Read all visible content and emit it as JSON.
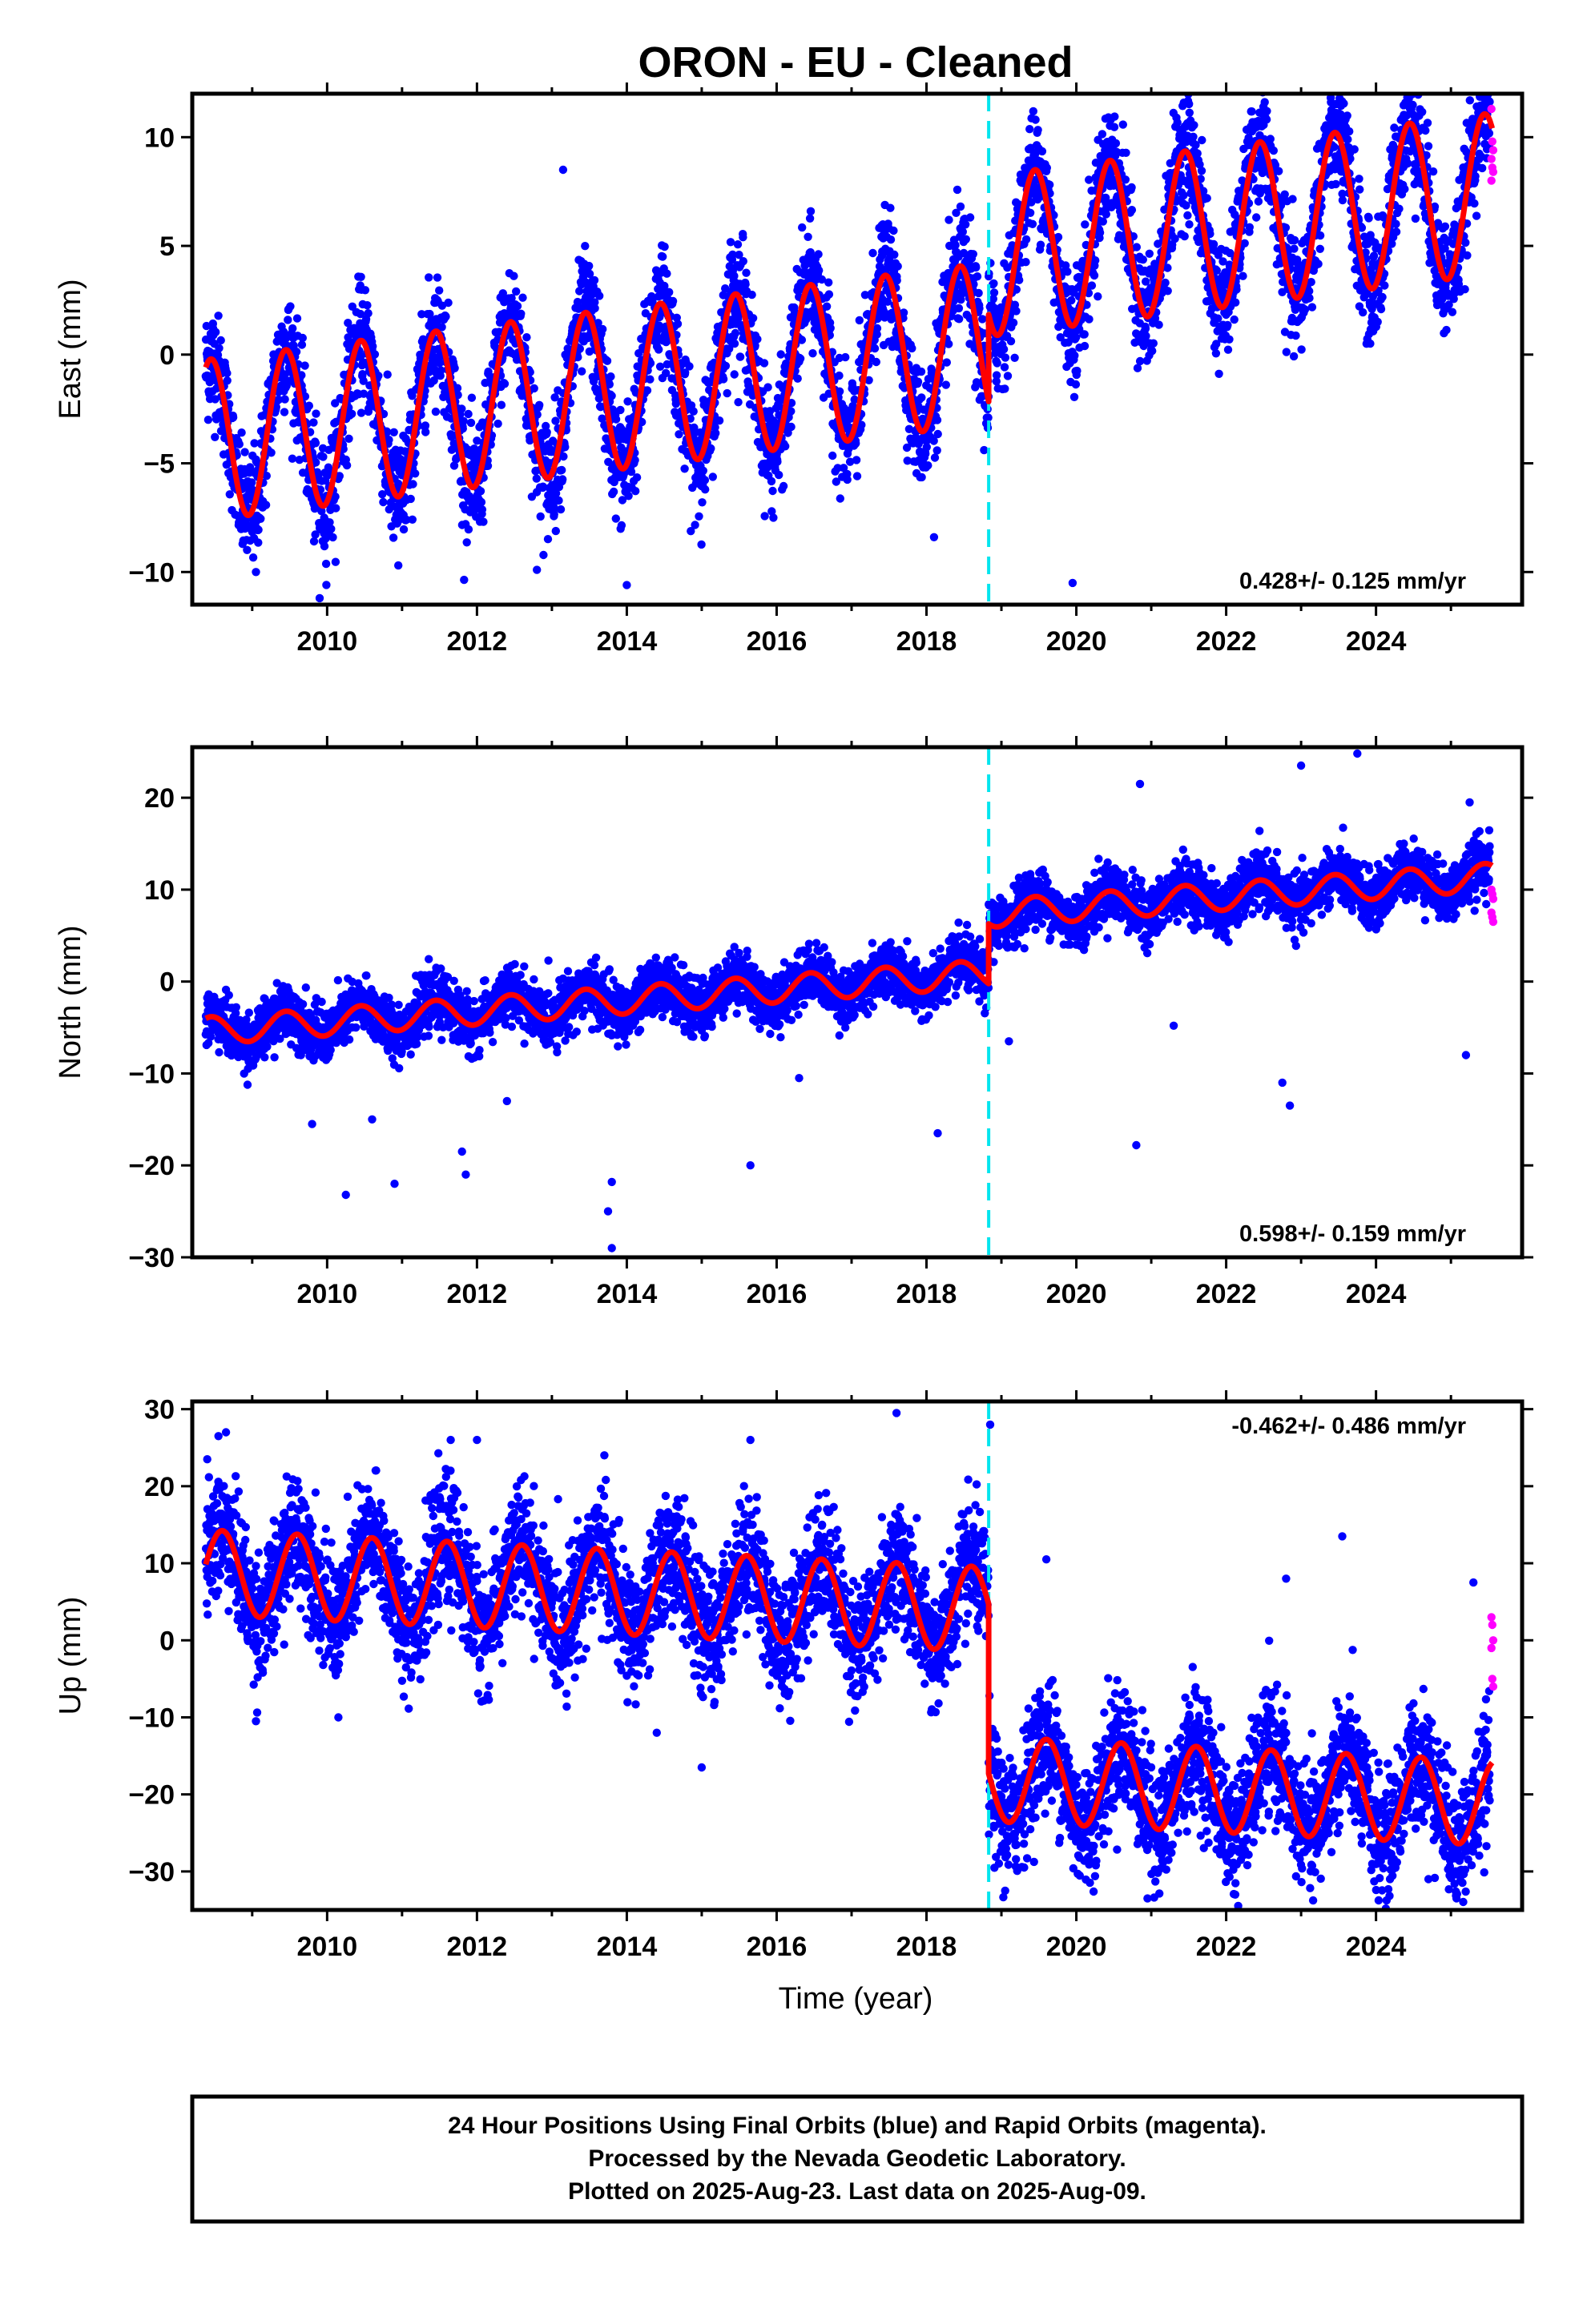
{
  "chart_data": {
    "title": "ORON  - EU - Cleaned",
    "type": "scatter",
    "xlabel": "Time (year)",
    "xlim": [
      2008.2,
      2025.95
    ],
    "x_ticks": [
      2010,
      2012,
      2014,
      2016,
      2018,
      2020,
      2022,
      2024
    ],
    "x_tick_labels": [
      "2010",
      "2012",
      "2014",
      "2016",
      "2018",
      "2020",
      "2022",
      "2024"
    ],
    "equipment_change_year": 2018.83,
    "colors": {
      "final_orbits": "#0000ff",
      "rapid_orbits": "#ff00ff",
      "model_fit": "#ff0000",
      "equipment_change": "#00e5ee"
    },
    "panels": [
      {
        "ylabel": "East (mm)",
        "ylim": [
          -11.5,
          12
        ],
        "y_ticks": [
          -10,
          -5,
          0,
          5,
          10
        ],
        "y_tick_labels": [
          "−10",
          "−5",
          "0",
          "5",
          "10"
        ],
        "rate_label": "0.428+/- 0.125 mm/yr",
        "rate_position": "bottom-right",
        "model": {
          "offset_at_2008": -4.1,
          "rate": 0.428,
          "step": 4.0,
          "amplitude": 3.7,
          "phase_peak": 0.45
        },
        "scatter": 1.3,
        "rapid_values": [
          11.3,
          9.8,
          9.4,
          9.0,
          8.6,
          8.4,
          8.0
        ],
        "outliers": [
          {
            "x": 2009.05,
            "y": -10.0
          },
          {
            "x": 2009.9,
            "y": -11.2
          },
          {
            "x": 2013.15,
            "y": 8.5
          },
          {
            "x": 2014.0,
            "y": -10.6
          },
          {
            "x": 2019.95,
            "y": -10.5
          },
          {
            "x": 2010.95,
            "y": -9.7
          },
          {
            "x": 2012.8,
            "y": -9.9
          },
          {
            "x": 2015.55,
            "y": 5.4
          },
          {
            "x": 2017.5,
            "y": 5.8
          },
          {
            "x": 2018.1,
            "y": -8.4
          }
        ]
      },
      {
        "ylabel": "North (mm)",
        "ylim": [
          -30,
          25.5
        ],
        "y_ticks": [
          -30,
          -20,
          -10,
          0,
          10,
          20
        ],
        "y_tick_labels": [
          "−30",
          "−20",
          "−10",
          "0",
          "10",
          "20"
        ],
        "rate_label": "0.598+/- 0.159 mm/yr",
        "rate_position": "bottom-right",
        "model": {
          "offset_at_2008": -5.6,
          "rate": 0.598,
          "step": 6.5,
          "amplitude": 1.5,
          "phase_peak": 0.45
        },
        "scatter": 1.5,
        "rapid_values": [
          10.0,
          9.5,
          9.0,
          7.5,
          7.0,
          6.5
        ],
        "outliers": [
          {
            "x": 2009.8,
            "y": -15.5
          },
          {
            "x": 2010.25,
            "y": -23.2
          },
          {
            "x": 2010.9,
            "y": -22.0
          },
          {
            "x": 2011.8,
            "y": -18.5
          },
          {
            "x": 2011.85,
            "y": -21.0
          },
          {
            "x": 2013.75,
            "y": -25.0
          },
          {
            "x": 2013.8,
            "y": -29.0
          },
          {
            "x": 2013.8,
            "y": -21.8
          },
          {
            "x": 2015.65,
            "y": -20.0
          },
          {
            "x": 2018.15,
            "y": -16.5
          },
          {
            "x": 2020.85,
            "y": 21.5
          },
          {
            "x": 2020.8,
            "y": -17.8
          },
          {
            "x": 2023.0,
            "y": 23.5
          },
          {
            "x": 2023.75,
            "y": 24.8
          },
          {
            "x": 2022.85,
            "y": -13.5
          },
          {
            "x": 2025.2,
            "y": -8.0
          },
          {
            "x": 2010.6,
            "y": -15.0
          },
          {
            "x": 2012.4,
            "y": -13.0
          },
          {
            "x": 2016.3,
            "y": -10.5
          },
          {
            "x": 2019.1,
            "y": -6.5
          },
          {
            "x": 2021.3,
            "y": -4.8
          },
          {
            "x": 2022.75,
            "y": -11.0
          },
          {
            "x": 2025.25,
            "y": 19.5
          }
        ]
      },
      {
        "ylabel": "Up (mm)",
        "ylim": [
          -35,
          31
        ],
        "y_ticks": [
          -30,
          -20,
          -10,
          0,
          10,
          20,
          30
        ],
        "y_tick_labels": [
          "−30",
          "−20",
          "−10",
          "0",
          "10",
          "20",
          "30"
        ],
        "rate_label": "-0.462+/- 0.486 mm/yr",
        "rate_position": "top-right",
        "model": {
          "offset_at_2008": 9.0,
          "rate": -0.462,
          "step": -22.0,
          "amplitude": 5.5,
          "phase_peak": 0.6
        },
        "scatter": 4.0,
        "rapid_values": [
          3.0,
          2.0,
          0.0,
          -1.0,
          -5.0,
          -6.0
        ],
        "outliers": [
          {
            "x": 2008.4,
            "y": 23.5
          },
          {
            "x": 2008.65,
            "y": 27.0
          },
          {
            "x": 2008.55,
            "y": 26.5
          },
          {
            "x": 2009.05,
            "y": -10.5
          },
          {
            "x": 2010.15,
            "y": -10.0
          },
          {
            "x": 2011.65,
            "y": 26.0
          },
          {
            "x": 2012.0,
            "y": 26.0
          },
          {
            "x": 2013.7,
            "y": 24.0
          },
          {
            "x": 2014.4,
            "y": -12.0
          },
          {
            "x": 2015.0,
            "y": -16.5
          },
          {
            "x": 2015.65,
            "y": 26.0
          },
          {
            "x": 2017.6,
            "y": 29.5
          },
          {
            "x": 2018.85,
            "y": 28.0
          },
          {
            "x": 2019.05,
            "y": -32.5
          },
          {
            "x": 2019.6,
            "y": 10.5
          },
          {
            "x": 2020.95,
            "y": -33.5
          },
          {
            "x": 2023.55,
            "y": 13.5
          },
          {
            "x": 2024.7,
            "y": -31.0
          },
          {
            "x": 2025.3,
            "y": 7.5
          },
          {
            "x": 2022.8,
            "y": 8.0
          }
        ]
      }
    ]
  },
  "caption": {
    "line1": "24 Hour Positions Using Final Orbits (blue) and Rapid Orbits (magenta).",
    "line2": "Processed by the Nevada Geodetic Laboratory.",
    "line3": "Plotted on 2025-Aug-23. Last data on 2025-Aug-09."
  }
}
